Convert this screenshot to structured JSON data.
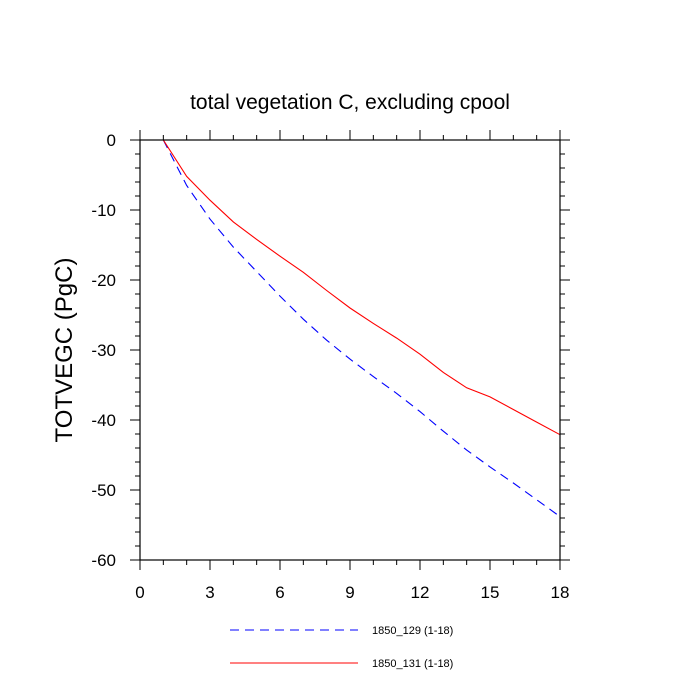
{
  "chart_data": {
    "type": "line",
    "title": "total vegetation C, excluding cpool",
    "xlabel": "",
    "ylabel": "TOTVEGC  (PgC)",
    "xlim": [
      0,
      18
    ],
    "ylim": [
      -60,
      0
    ],
    "xticks": [
      0,
      3,
      6,
      9,
      12,
      15,
      18
    ],
    "yticks": [
      0,
      -10,
      -20,
      -30,
      -40,
      -50,
      -60
    ],
    "xtick_labels": [
      "0",
      "3",
      "6",
      "9",
      "12",
      "15",
      "18"
    ],
    "ytick_labels": [
      "0",
      "-10",
      "-20",
      "-30",
      "-40",
      "-50",
      "-60"
    ],
    "legend_position": "bottom",
    "series": [
      {
        "name": "1850_129 (1-18)",
        "color": "#0000ff",
        "dash": "dashed",
        "x": [
          1,
          2,
          3,
          4,
          5,
          6,
          7,
          8,
          9,
          10,
          11,
          12,
          13,
          14,
          15,
          16,
          17,
          18
        ],
        "y": [
          0,
          -6.5,
          -11.3,
          -15.3,
          -18.8,
          -22.3,
          -25.6,
          -28.6,
          -31.3,
          -33.8,
          -36.2,
          -38.8,
          -41.6,
          -44.3,
          -46.7,
          -49.0,
          -51.4,
          -53.8
        ]
      },
      {
        "name": "1850_131 (1-18)",
        "color": "#ff0000",
        "dash": "solid",
        "x": [
          1,
          2,
          3,
          4,
          5,
          6,
          7,
          8,
          9,
          10,
          11,
          12,
          13,
          14,
          15,
          16,
          17,
          18
        ],
        "y": [
          0,
          -5.2,
          -8.6,
          -11.7,
          -14.2,
          -16.6,
          -18.9,
          -21.5,
          -24.0,
          -26.2,
          -28.3,
          -30.6,
          -33.2,
          -35.4,
          -36.7,
          -38.5,
          -40.3,
          -42.1
        ]
      }
    ]
  }
}
